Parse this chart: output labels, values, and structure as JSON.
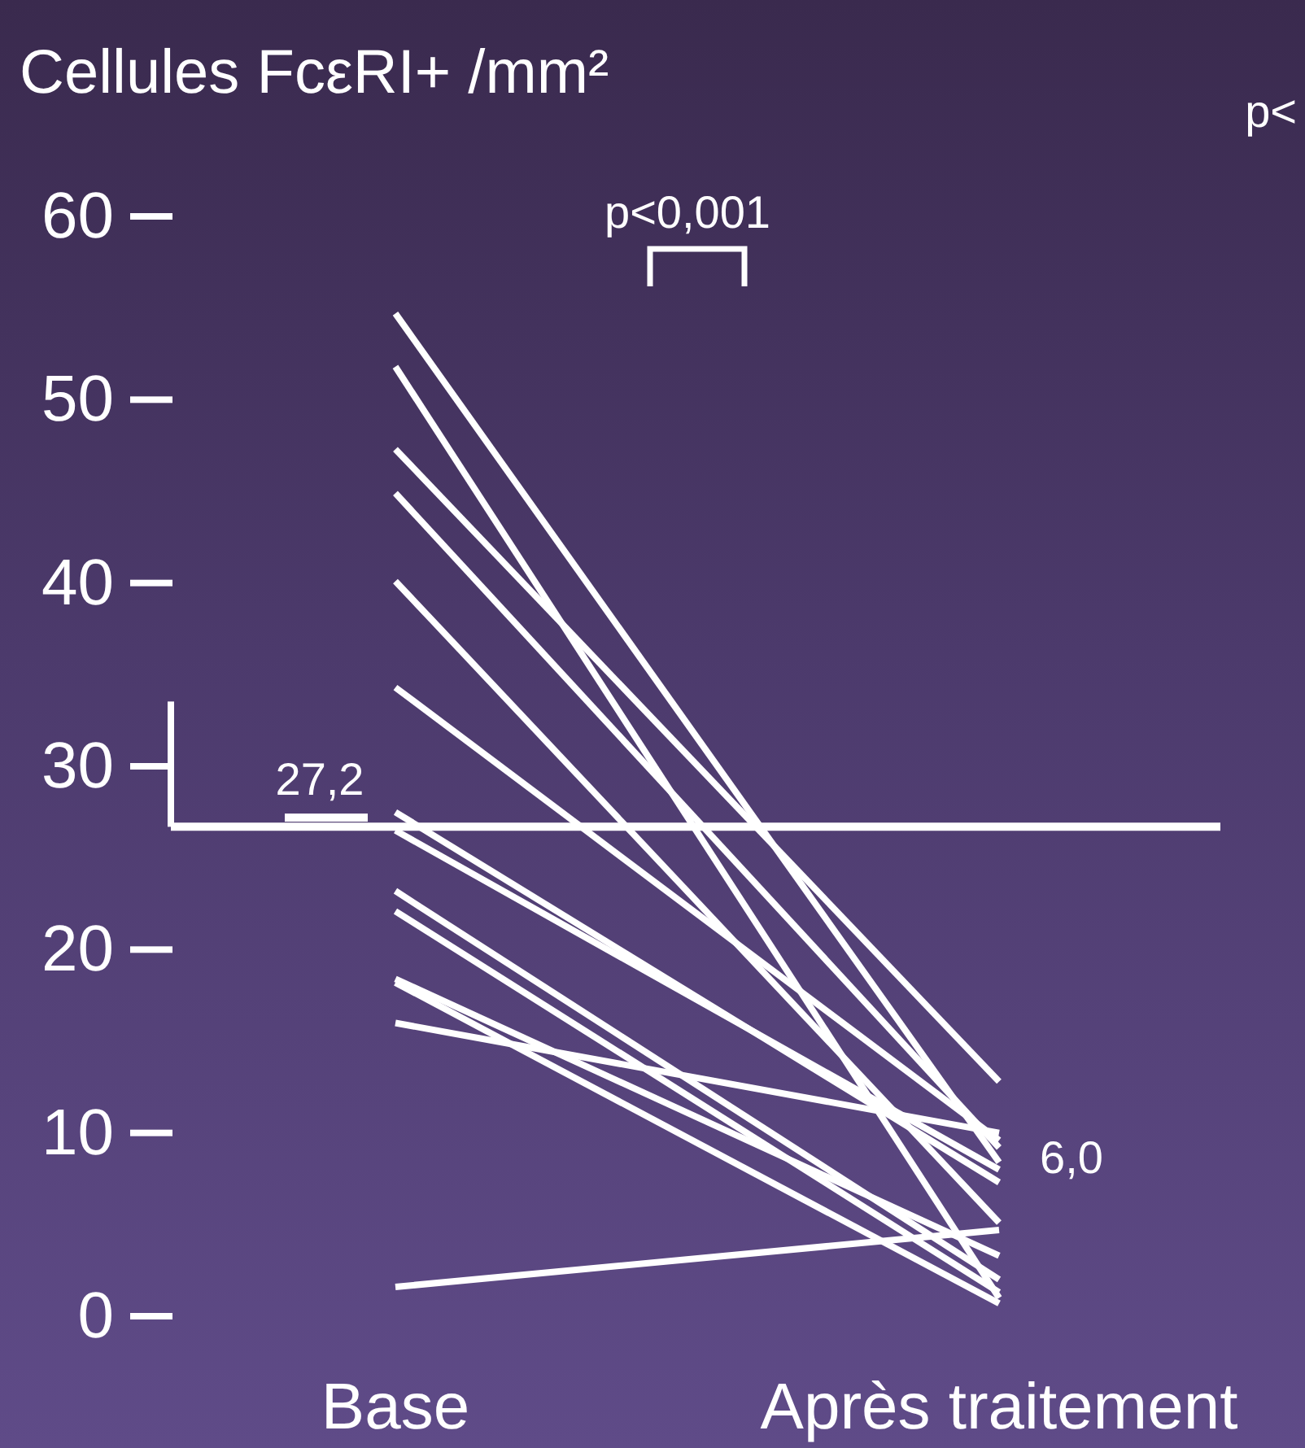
{
  "chart_data": {
    "type": "line",
    "title": "Cellules FcεRI+ /mm²",
    "categories": [
      "Base",
      "Après traitement"
    ],
    "series": [
      {
        "color": "#ffffff",
        "values": [
          54.7,
          8.4
        ]
      },
      {
        "color": "#ffffff",
        "values": [
          51.8,
          1.0
        ]
      },
      {
        "color": "#ffffff",
        "values": [
          47.3,
          12.8
        ]
      },
      {
        "color": "#ffffff",
        "values": [
          44.9,
          9.2
        ]
      },
      {
        "color": "#ffffff",
        "values": [
          40.1,
          5.1
        ]
      },
      {
        "color": "#ffffff",
        "values": [
          34.3,
          9.6
        ]
      },
      {
        "color": "#ffffff",
        "values": [
          27.5,
          7.3
        ]
      },
      {
        "color": "#ffffff",
        "values": [
          26.5,
          8.0
        ]
      },
      {
        "color": "#ffffff",
        "values": [
          23.2,
          2.0
        ]
      },
      {
        "color": "#ffffff",
        "values": [
          22.1,
          1.3
        ]
      },
      {
        "color": "#ffffff",
        "values": [
          18.4,
          3.3
        ]
      },
      {
        "color": "#ffffff",
        "values": [
          18.2,
          0.7
        ]
      },
      {
        "color": "#ffffff",
        "values": [
          16.0,
          10.0
        ]
      },
      {
        "color": "#ffffff",
        "values": [
          1.6,
          4.7
        ]
      }
    ],
    "ylim": [
      0,
      60
    ],
    "yticks": [
      0,
      10,
      20,
      30,
      40,
      50,
      60
    ],
    "line_style": "solid",
    "ref_lines": [
      {
        "axis": "y",
        "value": 26.7,
        "color": "#ffffff"
      }
    ],
    "annotations": [
      "p<0,001",
      {
        "text": "27,2",
        "x": "Base",
        "y": 27.2
      },
      {
        "text": "6,0",
        "x": "Après traitement",
        "y": 6.0
      },
      "p<"
    ]
  }
}
